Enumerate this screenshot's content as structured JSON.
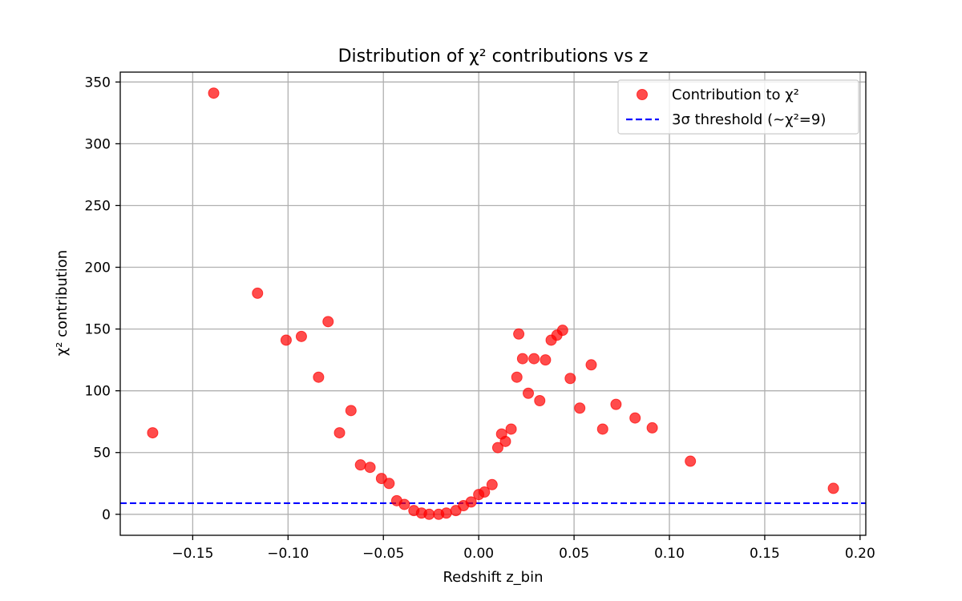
{
  "chart_data": {
    "type": "scatter",
    "title": "Distribution of χ² contributions vs z",
    "xlabel": "Redshift z_bin",
    "ylabel": "χ² contribution",
    "xlim": [
      -0.188,
      0.203
    ],
    "ylim": [
      -17,
      358
    ],
    "xticks": [
      -0.15,
      -0.1,
      -0.05,
      0.0,
      0.05,
      0.1,
      0.15,
      0.2
    ],
    "xtick_labels": [
      "−0.15",
      "−0.10",
      "−0.05",
      "0.00",
      "0.05",
      "0.10",
      "0.15",
      "0.20"
    ],
    "yticks": [
      0,
      50,
      100,
      150,
      200,
      250,
      300,
      350
    ],
    "ytick_labels": [
      "0",
      "50",
      "100",
      "150",
      "200",
      "250",
      "300",
      "350"
    ],
    "grid": true,
    "legend_position": "top-right",
    "series": [
      {
        "name": "Contribution to χ²",
        "kind": "scatter",
        "color": "#ff0000",
        "alpha": 0.7,
        "points": [
          [
            -0.171,
            66
          ],
          [
            -0.139,
            341
          ],
          [
            -0.116,
            179
          ],
          [
            -0.101,
            141
          ],
          [
            -0.093,
            144
          ],
          [
            -0.084,
            111
          ],
          [
            -0.079,
            156
          ],
          [
            -0.073,
            66
          ],
          [
            -0.067,
            84
          ],
          [
            -0.062,
            40
          ],
          [
            -0.057,
            38
          ],
          [
            -0.051,
            29
          ],
          [
            -0.047,
            25
          ],
          [
            -0.043,
            11
          ],
          [
            -0.039,
            8
          ],
          [
            -0.034,
            3
          ],
          [
            -0.03,
            1
          ],
          [
            -0.026,
            0
          ],
          [
            -0.021,
            0
          ],
          [
            -0.017,
            1
          ],
          [
            -0.012,
            3
          ],
          [
            -0.008,
            7
          ],
          [
            -0.004,
            10
          ],
          [
            0.0,
            16
          ],
          [
            0.003,
            18
          ],
          [
            0.007,
            24
          ],
          [
            0.01,
            54
          ],
          [
            0.012,
            65
          ],
          [
            0.014,
            59
          ],
          [
            0.017,
            69
          ],
          [
            0.02,
            111
          ],
          [
            0.021,
            146
          ],
          [
            0.023,
            126
          ],
          [
            0.026,
            98
          ],
          [
            0.029,
            126
          ],
          [
            0.032,
            92
          ],
          [
            0.035,
            125
          ],
          [
            0.038,
            141
          ],
          [
            0.041,
            145
          ],
          [
            0.044,
            149
          ],
          [
            0.048,
            110
          ],
          [
            0.053,
            86
          ],
          [
            0.059,
            121
          ],
          [
            0.065,
            69
          ],
          [
            0.072,
            89
          ],
          [
            0.082,
            78
          ],
          [
            0.091,
            70
          ],
          [
            0.111,
            43
          ],
          [
            0.186,
            21
          ]
        ]
      },
      {
        "name": "3σ threshold (~χ²=9)",
        "kind": "hline",
        "color": "#0000ff",
        "y": 9
      }
    ]
  }
}
